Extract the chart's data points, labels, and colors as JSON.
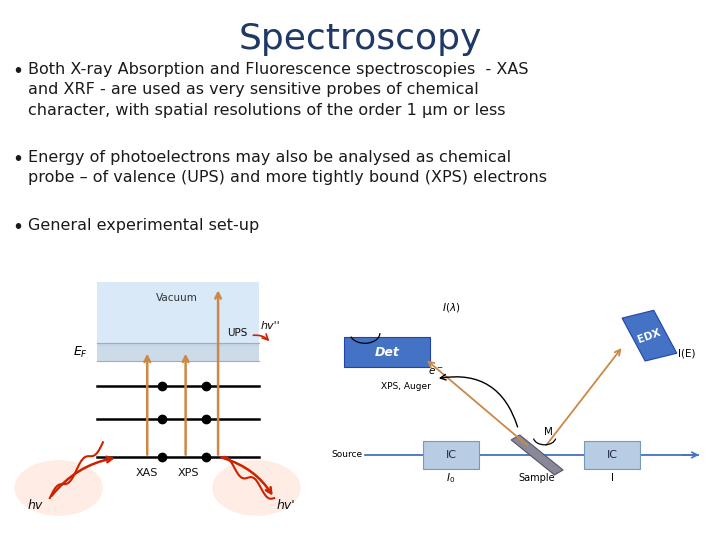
{
  "title": "Spectroscopy",
  "title_color": "#1F3864",
  "title_fontsize": 26,
  "background_color": "#ffffff",
  "bullet_color": "#1a1a1a",
  "bullet_fontsize": 11.5,
  "bullet1": "Both X-ray Absorption and Fluorescence spectroscopies  - XAS\nand XRF - are used as very sensitive probes of chemical\ncharacter, with spatial resolutions of the order 1 μm or less",
  "bullet2": "Energy of photoelectrons may also be analysed as chemical\nprobe – of valence (UPS) and more tightly bound (XPS) electrons",
  "bullet3": "General experimental set-up",
  "orange": "#cc8844",
  "blue_box": "#4472c4",
  "blue_line": "#4472c4",
  "gray_box": "#b0b8c8",
  "light_blue": "#c5d8f0",
  "ic_box": "#b8cce4",
  "red_arrow": "#cc2200"
}
